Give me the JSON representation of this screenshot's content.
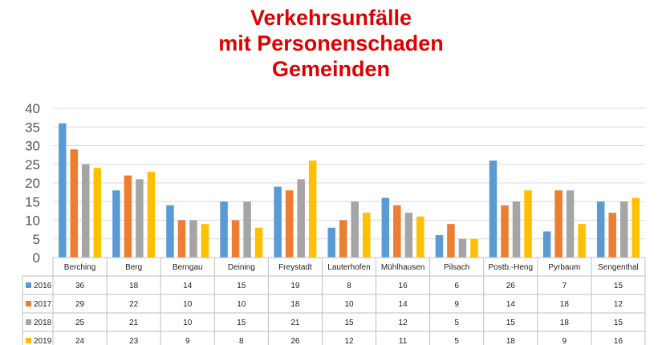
{
  "chart_data": {
    "type": "bar",
    "title": [
      "Verkehrsunfälle",
      "mit Personenschaden",
      "Gemeinden"
    ],
    "categories": [
      "Berching",
      "Berg",
      "Berngau",
      "Deining",
      "Freystadt",
      "Lauterhofen",
      "Mühlhausen",
      "Pilsach",
      "Postb.-Heng",
      "Pyrbaum",
      "Sengenthal"
    ],
    "series": [
      {
        "name": "2016",
        "color": "#5b9bd5",
        "values": [
          36,
          18,
          14,
          15,
          19,
          8,
          16,
          6,
          26,
          7,
          15
        ]
      },
      {
        "name": "2017",
        "color": "#ed7d31",
        "values": [
          29,
          22,
          10,
          10,
          18,
          10,
          14,
          9,
          14,
          18,
          12
        ]
      },
      {
        "name": "2018",
        "color": "#a5a5a5",
        "values": [
          25,
          21,
          10,
          15,
          21,
          15,
          12,
          5,
          15,
          18,
          15
        ]
      },
      {
        "name": "2019",
        "color": "#ffc000",
        "values": [
          24,
          23,
          9,
          8,
          26,
          12,
          11,
          5,
          18,
          9,
          16
        ]
      }
    ],
    "ylim": [
      0,
      40
    ],
    "yticks": [
      0,
      5,
      10,
      15,
      20,
      25,
      30,
      35,
      40
    ],
    "grid": true,
    "legend": "data-table-left",
    "xlabel": "",
    "ylabel": ""
  }
}
